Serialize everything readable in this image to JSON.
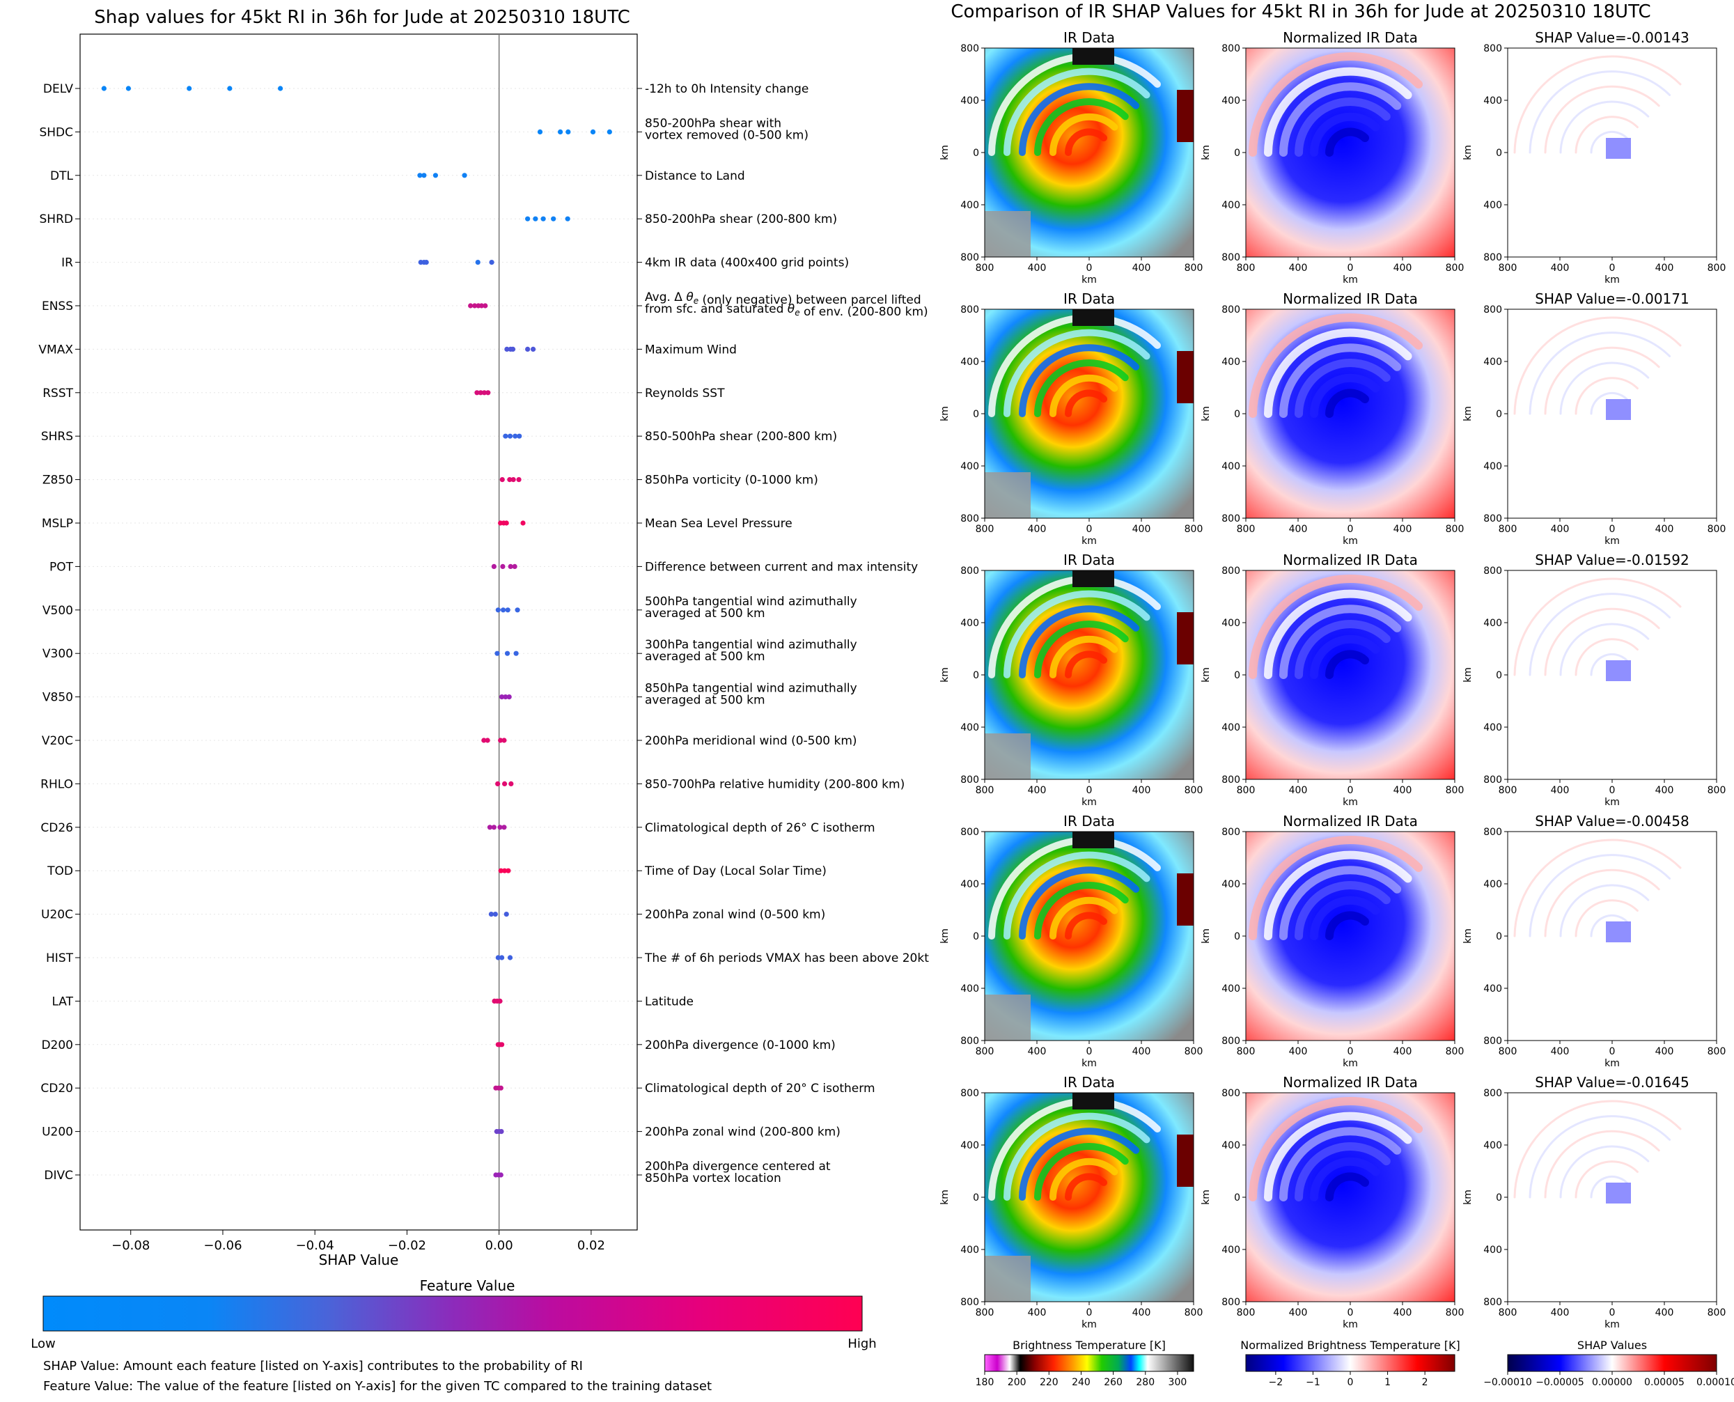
{
  "left_title": "Shap values for 45kt RI in 36h for Jude at 20250310 18UTC",
  "right_title": "Comparison of IR SHAP Values for 45kt RI in 36h for Jude at 20250310 18UTC",
  "colorbar": {
    "title": "Feature Value",
    "low": "Low",
    "high": "High"
  },
  "notes": [
    "SHAP Value: Amount each feature [listed on Y-axis] contributes to the probability of RI",
    "Feature Value: The value of the feature [listed on Y-axis] for the given TC compared to the training dataset"
  ],
  "panel_columns": [
    "IR Data",
    "Normalized IR Data"
  ],
  "panel_axis_ticks": [
    "800",
    "400",
    "0",
    "400",
    "800"
  ],
  "panel_axis_label": "km",
  "shap_panel_titles": [
    "SHAP Value=-0.00143",
    "SHAP Value=-0.00171",
    "SHAP Value=-0.01592",
    "SHAP Value=-0.00458",
    "SHAP Value=-0.01645"
  ],
  "bottom_colorbars": [
    {
      "title": "Brightness Temperature [K]",
      "ticks": [
        "180",
        "200",
        "220",
        "240",
        "260",
        "280",
        "300"
      ],
      "range": [
        180,
        310
      ]
    },
    {
      "title": "Normalized Brightness Temperature [K]",
      "ticks": [
        "−2",
        "−1",
        "0",
        "1",
        "2"
      ],
      "range": [
        -2.8,
        2.8
      ]
    },
    {
      "title": "SHAP Values",
      "ticks": [
        "−0.00010",
        "−0.00005",
        "0.00000",
        "0.00005",
        "0.00010"
      ],
      "range": [
        -0.0001,
        0.0001
      ]
    }
  ],
  "colors": {
    "low": "#008bfb",
    "mid": "#9b23b7",
    "high": "#ff0052"
  },
  "chart_data": {
    "type": "scatter",
    "title": "Shap values for 45kt RI in 36h for Jude at 20250310 18UTC",
    "xlabel": "SHAP Value",
    "xlim": [
      -0.091,
      0.03
    ],
    "xticks": [
      "−0.08",
      "−0.06",
      "−0.04",
      "−0.02",
      "0.00",
      "0.02"
    ],
    "xtick_values": [
      -0.08,
      -0.06,
      -0.04,
      -0.02,
      0.0,
      0.02
    ],
    "features": [
      {
        "name": "DELV",
        "desc": [
          "-12h to 0h Intensity change"
        ],
        "shap": [
          -0.0858,
          -0.0805,
          -0.0673,
          -0.0585,
          -0.0475
        ],
        "fv": [
          0.03,
          0.03,
          0.03,
          0.03,
          0.03
        ]
      },
      {
        "name": "SHDC",
        "desc": [
          "850-200hPa shear with",
          "vortex removed (0-500 km)"
        ],
        "shap": [
          0.0089,
          0.0133,
          0.015,
          0.0204,
          0.024
        ],
        "fv": [
          0.03,
          0.03,
          0.03,
          0.03,
          0.03
        ]
      },
      {
        "name": "DTL",
        "desc": [
          "Distance to Land"
        ],
        "shap": [
          -0.0172,
          -0.0163,
          -0.0138,
          -0.0075
        ],
        "fv": [
          0.05,
          0.05,
          0.05,
          0.05
        ]
      },
      {
        "name": "SHRD",
        "desc": [
          "850-200hPa shear (200-800 km)"
        ],
        "shap": [
          0.0062,
          0.0079,
          0.0096,
          0.0118,
          0.0149
        ],
        "fv": [
          0.05,
          0.05,
          0.05,
          0.05,
          0.05
        ]
      },
      {
        "name": "IR",
        "desc": [
          "4km IR data (400x400 grid points)"
        ],
        "shap": [
          -0.017,
          -0.0163,
          -0.0158,
          -0.0046,
          -0.0016
        ],
        "fv": [
          0.2,
          0.2,
          0.2,
          0.12,
          0.2
        ]
      },
      {
        "name": "ENSS",
        "desc": [
          "Avg. Δ θe (only negative) between parcel lifted",
          "from sfc. and saturated θe of env. (200-800 km)"
        ],
        "shap": [
          -0.0062,
          -0.0053,
          -0.0045,
          -0.0038,
          -0.003
        ],
        "fv": [
          0.72,
          0.72,
          0.72,
          0.72,
          0.72
        ]
      },
      {
        "name": "VMAX",
        "desc": [
          "Maximum Wind"
        ],
        "shap": [
          0.0017,
          0.0025,
          0.003,
          0.0062,
          0.0074
        ],
        "fv": [
          0.25,
          0.25,
          0.25,
          0.25,
          0.25
        ]
      },
      {
        "name": "RSST",
        "desc": [
          "Reynolds SST"
        ],
        "shap": [
          -0.0048,
          -0.004,
          -0.0032,
          -0.0024
        ],
        "fv": [
          0.8,
          0.8,
          0.8,
          0.8
        ]
      },
      {
        "name": "SHRS",
        "desc": [
          "850-500hPa shear (200-800 km)"
        ],
        "shap": [
          0.0014,
          0.0024,
          0.0035,
          0.0044
        ],
        "fv": [
          0.18,
          0.18,
          0.18,
          0.18
        ]
      },
      {
        "name": "Z850",
        "desc": [
          "850hPa vorticity (0-1000 km)"
        ],
        "shap": [
          0.0007,
          0.0023,
          0.0031,
          0.0043
        ],
        "fv": [
          0.85,
          0.85,
          0.85,
          0.85
        ]
      },
      {
        "name": "MSLP",
        "desc": [
          "Mean Sea Level Pressure"
        ],
        "shap": [
          0.0003,
          0.001,
          0.0016,
          0.0052
        ],
        "fv": [
          0.93,
          0.93,
          0.93,
          0.93
        ]
      },
      {
        "name": "POT",
        "desc": [
          "Difference between current and max intensity"
        ],
        "shap": [
          -0.0011,
          0.0008,
          0.0025,
          0.0034
        ],
        "fv": [
          0.62,
          0.62,
          0.62,
          0.62
        ]
      },
      {
        "name": "V500",
        "desc": [
          "500hPa tangential wind azimuthally",
          "averaged at 500 km"
        ],
        "shap": [
          -0.0002,
          0.0009,
          0.0019,
          0.004
        ],
        "fv": [
          0.18,
          0.18,
          0.18,
          0.18
        ]
      },
      {
        "name": "V300",
        "desc": [
          "300hPa tangential wind azimuthally",
          "averaged at 500 km"
        ],
        "shap": [
          -0.0004,
          0.0018,
          0.0037
        ],
        "fv": [
          0.18,
          0.18,
          0.18
        ]
      },
      {
        "name": "V850",
        "desc": [
          "850hPa tangential wind azimuthally",
          "averaged at 500 km"
        ],
        "shap": [
          0.0006,
          0.0014,
          0.0022
        ],
        "fv": [
          0.5,
          0.5,
          0.5
        ]
      },
      {
        "name": "V20C",
        "desc": [
          "200hPa meridional wind (0-500 km)"
        ],
        "shap": [
          -0.0033,
          -0.0025,
          0.0003,
          0.0011
        ],
        "fv": [
          0.85,
          0.85,
          0.85,
          0.85
        ]
      },
      {
        "name": "RHLO",
        "desc": [
          "850-700hPa relative humidity (200-800 km)"
        ],
        "shap": [
          -0.0003,
          0.0012,
          0.0026
        ],
        "fv": [
          0.85,
          0.85,
          0.85
        ]
      },
      {
        "name": "CD26",
        "desc": [
          "Climatological depth of 26° C isotherm"
        ],
        "shap": [
          -0.002,
          -0.0011,
          0.0002,
          0.0011
        ],
        "fv": [
          0.6,
          0.6,
          0.6,
          0.6
        ]
      },
      {
        "name": "TOD",
        "desc": [
          "Time of Day (Local Solar Time)"
        ],
        "shap": [
          0.0004,
          0.0012,
          0.002
        ],
        "fv": [
          0.97,
          0.97,
          0.97
        ]
      },
      {
        "name": "U20C",
        "desc": [
          "200hPa zonal wind (0-500 km)"
        ],
        "shap": [
          -0.0017,
          -0.0008,
          0.0016
        ],
        "fv": [
          0.22,
          0.22,
          0.22
        ]
      },
      {
        "name": "HIST",
        "desc": [
          "The # of 6h periods VMAX has been above 20kt"
        ],
        "shap": [
          -0.0002,
          0.0006,
          0.0024
        ],
        "fv": [
          0.2,
          0.2,
          0.2
        ]
      },
      {
        "name": "LAT",
        "desc": [
          "Latitude"
        ],
        "shap": [
          -0.001,
          -0.0004,
          0.0002
        ],
        "fv": [
          0.85,
          0.85,
          0.85
        ]
      },
      {
        "name": "D200",
        "desc": [
          "200hPa divergence (0-1000 km)"
        ],
        "shap": [
          -0.0002,
          0.0002,
          0.0006
        ],
        "fv": [
          0.88,
          0.88,
          0.88
        ]
      },
      {
        "name": "CD20",
        "desc": [
          "Climatological depth of 20° C isotherm"
        ],
        "shap": [
          -0.0007,
          -0.0001,
          0.0004
        ],
        "fv": [
          0.7,
          0.7,
          0.7
        ]
      },
      {
        "name": "U200",
        "desc": [
          "200hPa zonal wind (200-800 km)"
        ],
        "shap": [
          -0.0005,
          0.0,
          0.0005
        ],
        "fv": [
          0.35,
          0.35,
          0.35
        ]
      },
      {
        "name": "DIVC",
        "desc": [
          "200hPa divergence centered at",
          "850hPa vortex location"
        ],
        "shap": [
          -0.0007,
          -0.0001,
          0.0004
        ],
        "fv": [
          0.5,
          0.5,
          0.5
        ]
      }
    ]
  }
}
